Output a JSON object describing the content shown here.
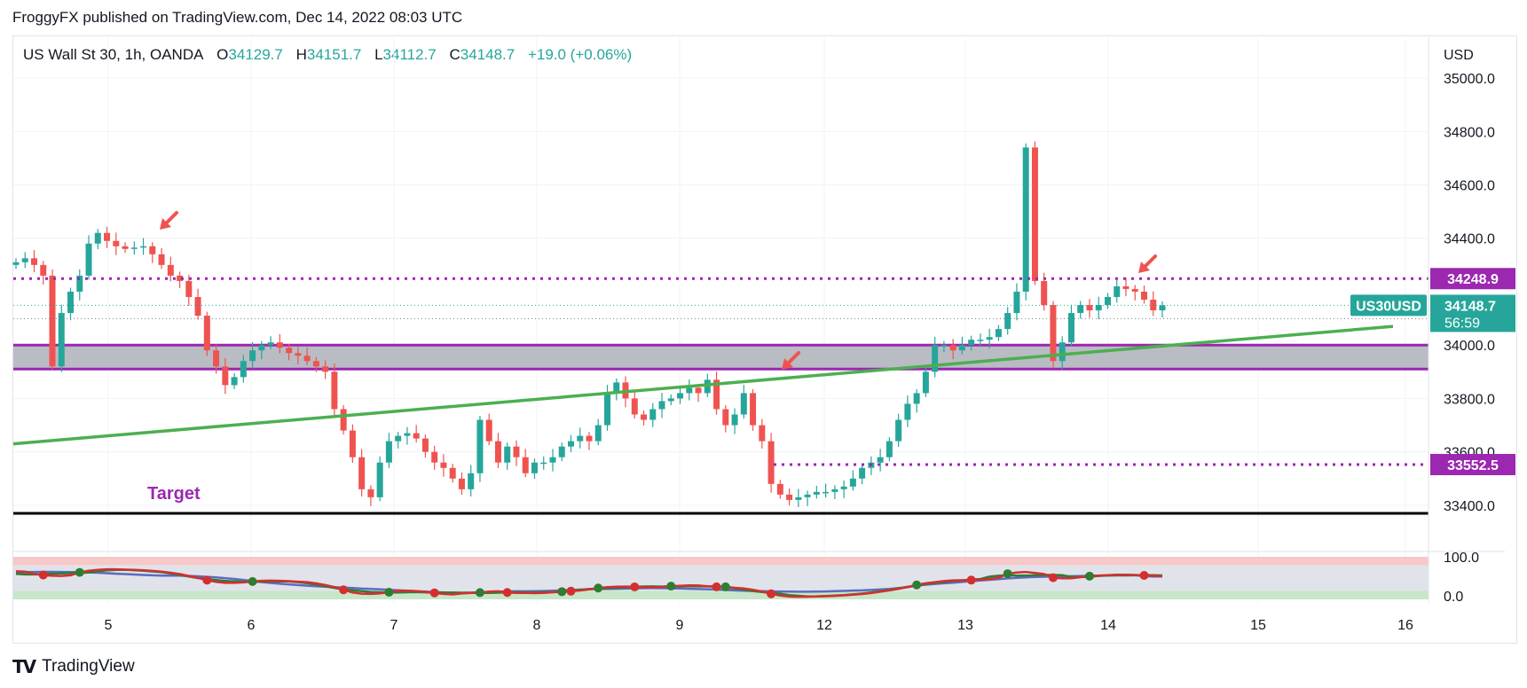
{
  "header": {
    "published_line": "FroggyFX published on TradingView.com, Dec 14, 2022 08:03 UTC"
  },
  "legend": {
    "symbol": "US Wall St 30, 1h, OANDA",
    "open_label": "O",
    "open_value": "34129.7",
    "high_label": "H",
    "high_value": "34151.7",
    "low_label": "L",
    "low_value": "34112.7",
    "close_label": "C",
    "close_value": "34148.7",
    "change": "+19.0 (+0.06%)"
  },
  "footer": {
    "logo_mark": "TV",
    "logo_text": "TradingView"
  },
  "colors": {
    "bull": "#26a69a",
    "bear": "#ef5350",
    "level": "#9c27b0",
    "trend": "#4caf50",
    "zone_fill": "#b2b5be",
    "support": "#000000",
    "osc_fast": "#d32f2f",
    "osc_slow": "#2e7d32",
    "osc_avg": "#5c6bc0"
  },
  "chart_data": {
    "type": "candlestick",
    "currency_label": "USD",
    "y_ticks": [
      "35000.0",
      "34800.0",
      "34600.0",
      "34400.0",
      "34000.0",
      "33800.0",
      "33600.0",
      "33400.0"
    ],
    "ylim": [
      33320,
      35020
    ],
    "x_ticks": [
      "5",
      "6",
      "7",
      "8",
      "9",
      "12",
      "13",
      "14",
      "15",
      "16"
    ],
    "labels": {
      "target": "Target",
      "level_high": "34248.9",
      "level_low": "33552.5",
      "price_tag": "US30USD",
      "price_value": "34148.7",
      "countdown": "56:59"
    },
    "levels": {
      "resistance_dotted": 34248.9,
      "support_dotted": 33552.5,
      "zone_top": 34000,
      "zone_bottom": 33910,
      "target_line": 33370
    },
    "trendline": {
      "start": 33630,
      "end": 34070
    },
    "oscillator": {
      "ticks": [
        "100.0",
        "0.0"
      ],
      "upper_band": [
        80,
        100
      ],
      "lower_band": [
        0,
        20
      ]
    },
    "series": [
      {
        "name": "US Wall St 30",
        "values": [
          34310,
          34325,
          34300,
          34260,
          33920,
          34120,
          34200,
          34260,
          34380,
          34420,
          34390,
          34370,
          34360,
          34365,
          34370,
          34340,
          34300,
          34260,
          34240,
          34180,
          34110,
          33980,
          33920,
          33850,
          33880,
          33940,
          33980,
          34000,
          34010,
          33990,
          33970,
          33960,
          33940,
          33920,
          33900,
          33760,
          33680,
          33580,
          33460,
          33430,
          33560,
          33640,
          33660,
          33670,
          33650,
          33600,
          33560,
          33540,
          33500,
          33460,
          33520,
          33720,
          33640,
          33560,
          33620,
          33580,
          33520,
          33560,
          33560,
          33580,
          33620,
          33640,
          33660,
          33640,
          33700,
          33820,
          33860,
          33800,
          33740,
          33720,
          33760,
          33790,
          33800,
          33820,
          33840,
          33820,
          33870,
          33760,
          33700,
          33740,
          33820,
          33700,
          33640,
          33480,
          33440,
          33420,
          33430,
          33440,
          33450,
          33450,
          33460,
          33470,
          33500,
          33540,
          33560,
          33580,
          33640,
          33720,
          33780,
          33820,
          33900,
          34000,
          34000,
          33980,
          34000,
          34020,
          34020,
          34030,
          34060,
          34120,
          34200,
          34740,
          34240,
          34150,
          33940,
          34010,
          34120,
          34150,
          34130,
          34150,
          34180,
          34220,
          34210,
          34200,
          34170,
          34130,
          34149
        ]
      }
    ]
  }
}
